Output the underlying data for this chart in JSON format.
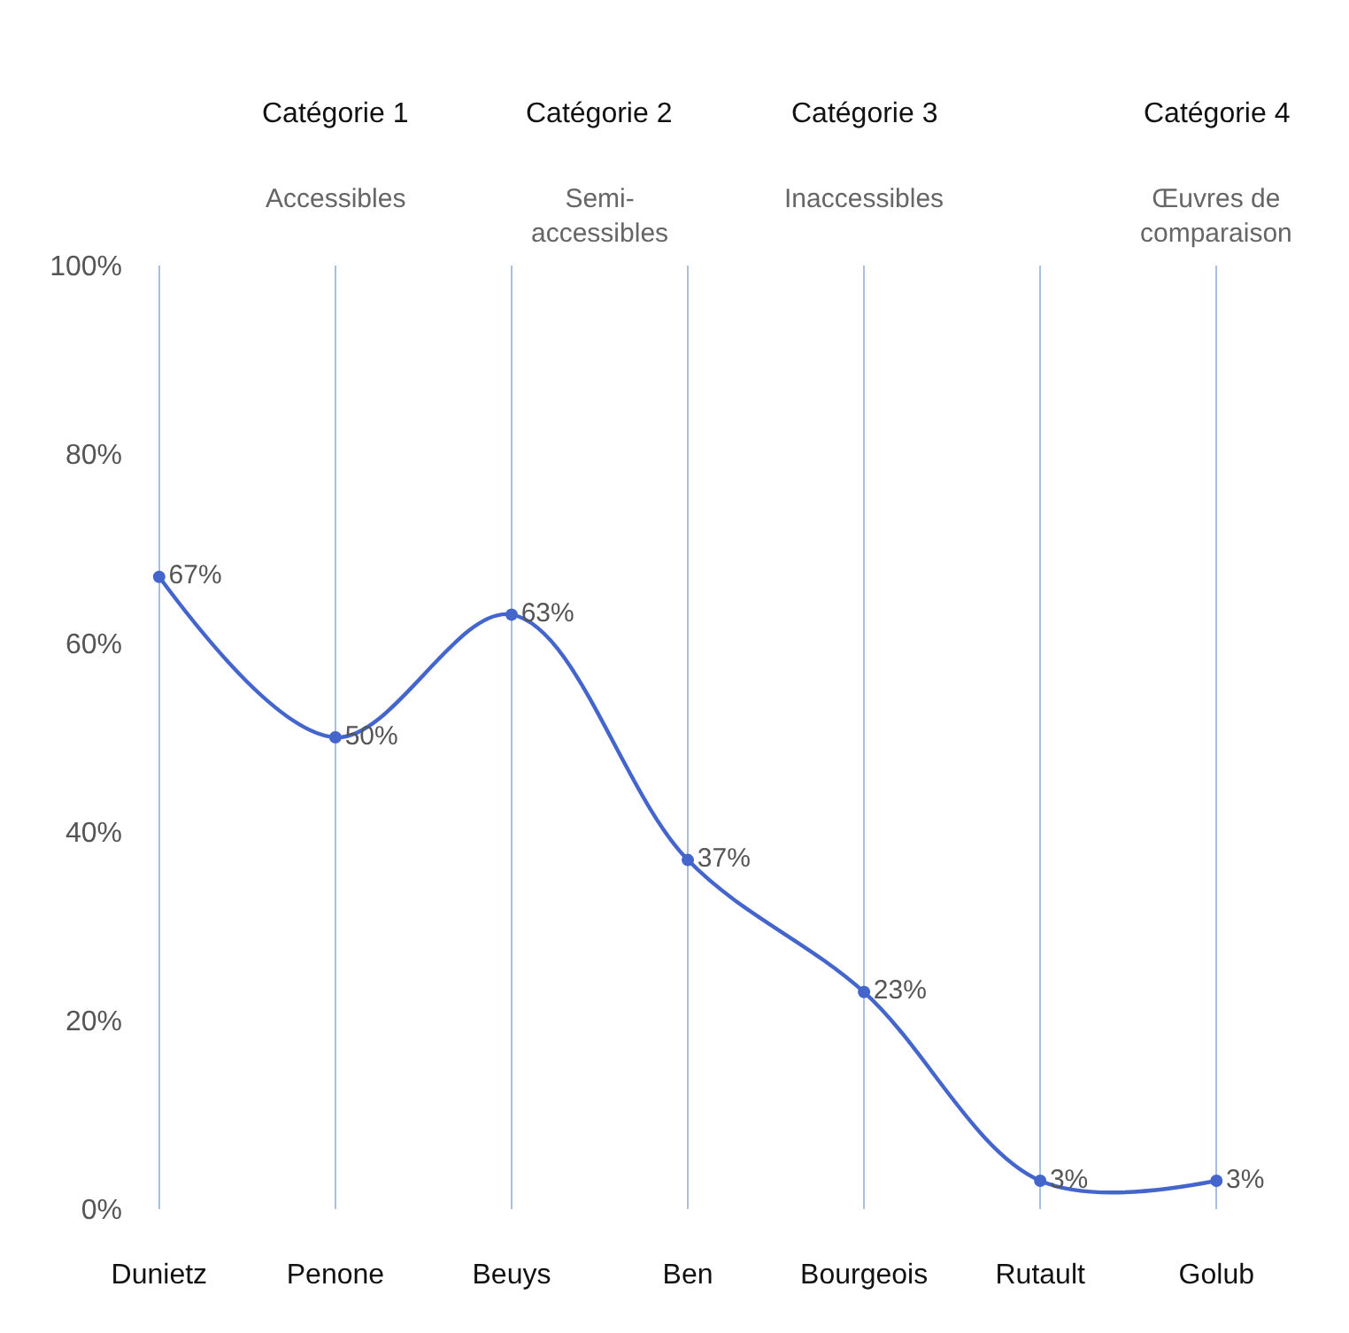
{
  "chart_data": {
    "type": "line",
    "categories": [
      "Dunietz",
      "Penone",
      "Beuys",
      "Ben",
      "Bourgeois",
      "Rutault",
      "Golub"
    ],
    "series": [
      {
        "color": "#4466cc",
        "values": [
          67,
          50,
          63,
          37,
          23,
          3,
          3
        ],
        "value_labels": [
          "67%",
          "50%",
          "63%",
          "37%",
          "23%",
          "3%",
          "3%"
        ]
      }
    ],
    "ylim": [
      0,
      100
    ],
    "yticks": [
      {
        "value": 0,
        "label": "0%"
      },
      {
        "value": 20,
        "label": "20%"
      },
      {
        "value": 40,
        "label": "40%"
      },
      {
        "value": 60,
        "label": "60%"
      },
      {
        "value": 80,
        "label": "80%"
      },
      {
        "value": 100,
        "label": "100%"
      }
    ],
    "grid": "x",
    "marker": "circle",
    "line_style": "solid",
    "legend": false,
    "annotations": [
      "Catégorie 1",
      "Accessibles",
      "Catégorie 2",
      "Semi-\naccessibles",
      "Catégorie 3",
      "Inaccessibles",
      "Catégorie 4",
      "Œuvres de\ncomparaison"
    ]
  }
}
